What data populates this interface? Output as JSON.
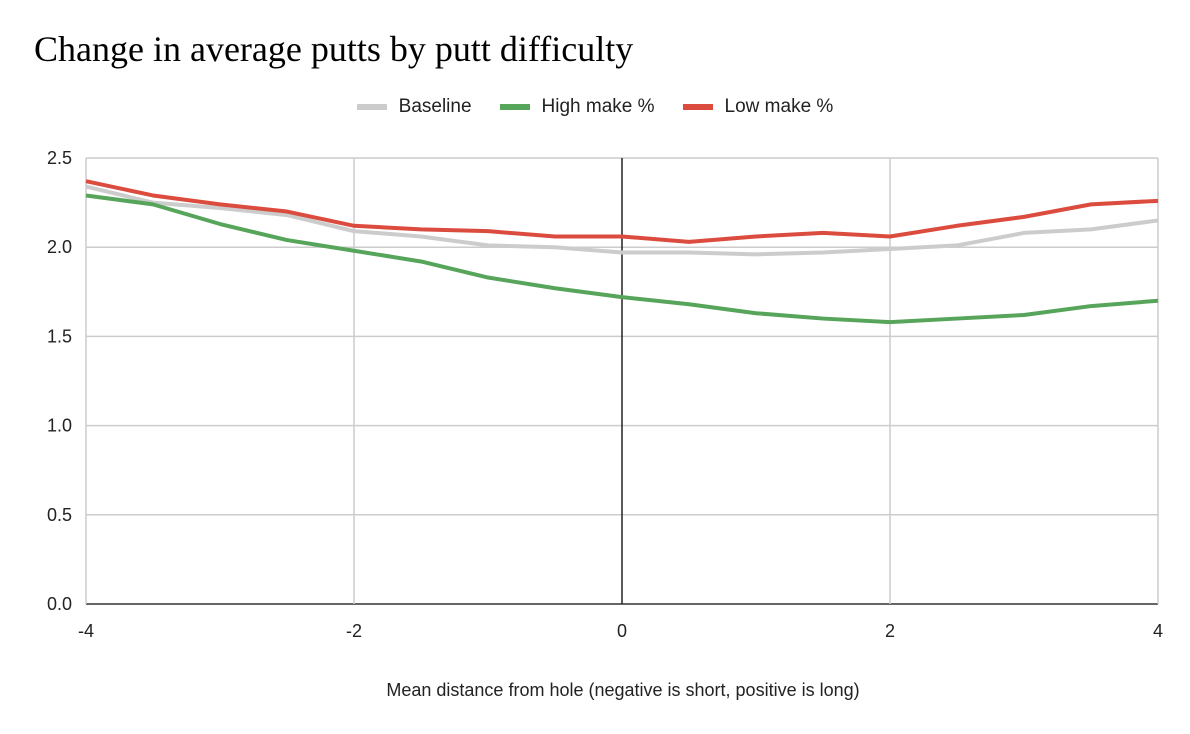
{
  "chart_data": {
    "type": "line",
    "title": "Change in average putts by putt difficulty",
    "xlabel": "Mean distance from hole (negative is short, positive is long)",
    "ylabel": "",
    "xlim": [
      -4,
      4
    ],
    "ylim": [
      0,
      2.5
    ],
    "xticks": [
      "-4",
      "-2",
      "0",
      "2",
      "4"
    ],
    "yticks": [
      "0.0",
      "0.5",
      "1.0",
      "1.5",
      "2.0",
      "2.5"
    ],
    "grid": true,
    "legend_position": "top",
    "x": [
      -4,
      -3.5,
      -3,
      -2.5,
      -2,
      -1.5,
      -1,
      -0.5,
      0,
      0.5,
      1,
      1.5,
      2,
      2.5,
      3,
      3.5,
      4
    ],
    "series": [
      {
        "name": "Baseline",
        "color": "#cccccc",
        "values": [
          2.34,
          2.25,
          2.22,
          2.18,
          2.09,
          2.06,
          2.01,
          2.0,
          1.97,
          1.97,
          1.96,
          1.97,
          1.99,
          2.01,
          2.08,
          2.1,
          2.15
        ]
      },
      {
        "name": "High make %",
        "color": "#57a55a",
        "values": [
          2.29,
          2.24,
          2.13,
          2.04,
          1.98,
          1.92,
          1.83,
          1.77,
          1.72,
          1.68,
          1.63,
          1.6,
          1.58,
          1.6,
          1.62,
          1.67,
          1.7
        ]
      },
      {
        "name": "Low make %",
        "color": "#db4c3f",
        "values": [
          2.37,
          2.29,
          2.24,
          2.2,
          2.12,
          2.1,
          2.09,
          2.06,
          2.06,
          2.03,
          2.06,
          2.08,
          2.06,
          2.12,
          2.17,
          2.24,
          2.26
        ]
      }
    ]
  }
}
